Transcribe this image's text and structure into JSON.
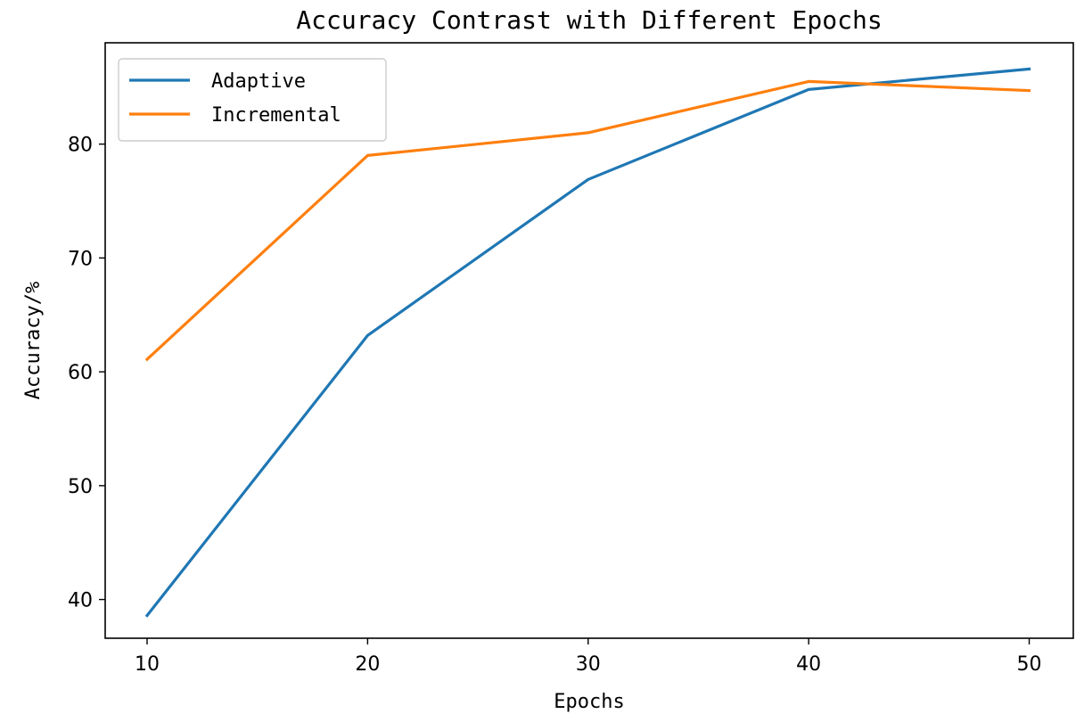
{
  "chart_data": {
    "type": "line",
    "title": "Accuracy Contrast with Different Epochs",
    "xlabel": "Epochs",
    "ylabel": "Accuracy/%",
    "x": [
      10,
      20,
      30,
      40,
      50
    ],
    "xticks": [
      10,
      20,
      30,
      40,
      50
    ],
    "yticks": [
      40,
      50,
      60,
      70,
      80
    ],
    "xlim": [
      8.1,
      52.0
    ],
    "ylim": [
      36.6,
      88.9
    ],
    "grid": false,
    "legend_position": "upper-left",
    "series": [
      {
        "name": "Adaptive",
        "color": "#1f77b4",
        "values": [
          38.6,
          63.2,
          76.9,
          84.8,
          86.6
        ]
      },
      {
        "name": "Incremental",
        "color": "#ff7f0e",
        "values": [
          61.1,
          79.0,
          81.0,
          85.5,
          84.7
        ]
      }
    ]
  }
}
